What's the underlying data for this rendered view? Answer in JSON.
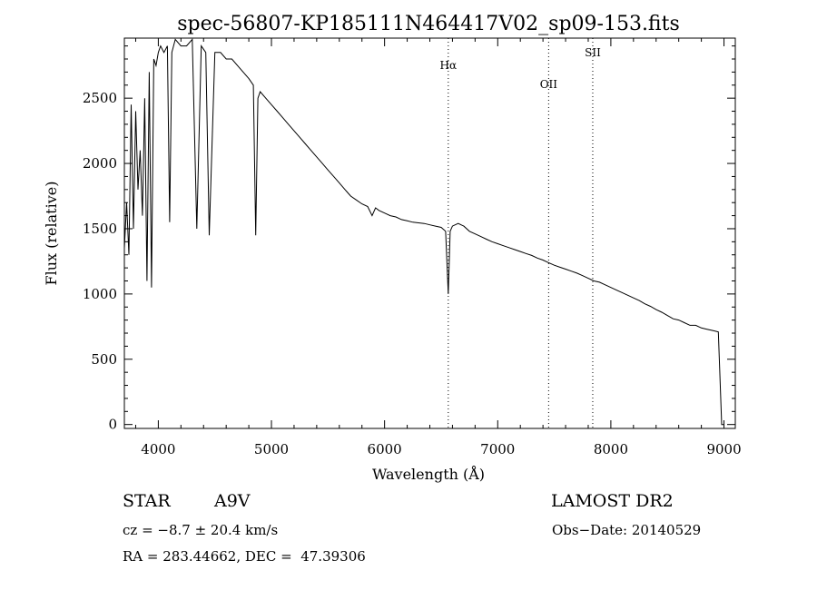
{
  "chart_data": {
    "type": "line",
    "title": "spec-56807-KP185111N464417V02_sp09-153.fits",
    "xlabel": "Wavelength (Å)",
    "ylabel": "Flux (relative)",
    "xlim": [
      3700,
      9100
    ],
    "ylim": [
      -30,
      2960
    ],
    "x_ticks": [
      4000,
      5000,
      6000,
      7000,
      8000,
      9000
    ],
    "y_ticks": [
      0,
      500,
      1000,
      1500,
      2000,
      2500
    ],
    "grid": false,
    "series": [
      {
        "values_x": [
          3700,
          3720,
          3740,
          3760,
          3780,
          3800,
          3820,
          3840,
          3860,
          3880,
          3900,
          3920,
          3940,
          3960,
          3980,
          4000,
          4020,
          4050,
          4080,
          4100,
          4120,
          4150,
          4200,
          4250,
          4300,
          4340,
          4380,
          4420,
          4450,
          4500,
          4550,
          4600,
          4650,
          4700,
          4750,
          4800,
          4840,
          4861,
          4880,
          4900,
          4950,
          5000,
          5050,
          5100,
          5150,
          5200,
          5250,
          5300,
          5350,
          5400,
          5450,
          5500,
          5550,
          5600,
          5650,
          5700,
          5750,
          5800,
          5850,
          5890,
          5920,
          5950,
          6000,
          6050,
          6100,
          6150,
          6200,
          6250,
          6300,
          6350,
          6400,
          6450,
          6500,
          6540,
          6563,
          6580,
          6600,
          6650,
          6700,
          6750,
          6800,
          6850,
          6900,
          6950,
          7000,
          7050,
          7100,
          7150,
          7200,
          7250,
          7300,
          7350,
          7400,
          7450,
          7500,
          7550,
          7600,
          7650,
          7700,
          7750,
          7800,
          7850,
          7900,
          7950,
          8000,
          8050,
          8100,
          8150,
          8200,
          8250,
          8300,
          8350,
          8400,
          8450,
          8500,
          8550,
          8600,
          8650,
          8700,
          8750,
          8800,
          8850,
          8900,
          8950,
          8980,
          9000
        ],
        "values_y": [
          1350,
          1700,
          1300,
          2450,
          1500,
          2400,
          1800,
          2100,
          1600,
          2500,
          1100,
          2700,
          1050,
          2800,
          2750,
          2850,
          2900,
          2850,
          2900,
          1550,
          2850,
          2950,
          2900,
          2900,
          2950,
          1500,
          2900,
          2850,
          1450,
          2850,
          2850,
          2800,
          2800,
          2750,
          2700,
          2650,
          2600,
          1450,
          2500,
          2550,
          2500,
          2450,
          2400,
          2350,
          2300,
          2250,
          2200,
          2150,
          2100,
          2050,
          2000,
          1950,
          1900,
          1850,
          1800,
          1750,
          1720,
          1690,
          1670,
          1600,
          1660,
          1640,
          1620,
          1600,
          1590,
          1570,
          1560,
          1550,
          1545,
          1540,
          1530,
          1520,
          1510,
          1480,
          1000,
          1480,
          1520,
          1540,
          1520,
          1480,
          1460,
          1440,
          1420,
          1400,
          1385,
          1370,
          1355,
          1340,
          1325,
          1310,
          1295,
          1275,
          1260,
          1240,
          1220,
          1205,
          1190,
          1175,
          1160,
          1140,
          1120,
          1100,
          1090,
          1070,
          1050,
          1030,
          1010,
          990,
          970,
          950,
          925,
          905,
          880,
          860,
          835,
          810,
          800,
          780,
          760,
          760,
          740,
          730,
          720,
          710,
          0,
          0
        ]
      }
    ],
    "vlines": [
      {
        "x": 6563,
        "label": "Hα"
      },
      {
        "x": 7450,
        "label": "OII"
      },
      {
        "x": 7840,
        "label": "SII"
      }
    ]
  },
  "info": {
    "class_label": "STAR",
    "subclass_label": "A9V",
    "cz_text": "cz = −8.7 ± 20.4 km/s",
    "radec_text": "RA = 283.44662, DEC =  47.39306",
    "survey_text": "LAMOST DR2",
    "obsdate_text": "Obs−Date: 20140529"
  }
}
